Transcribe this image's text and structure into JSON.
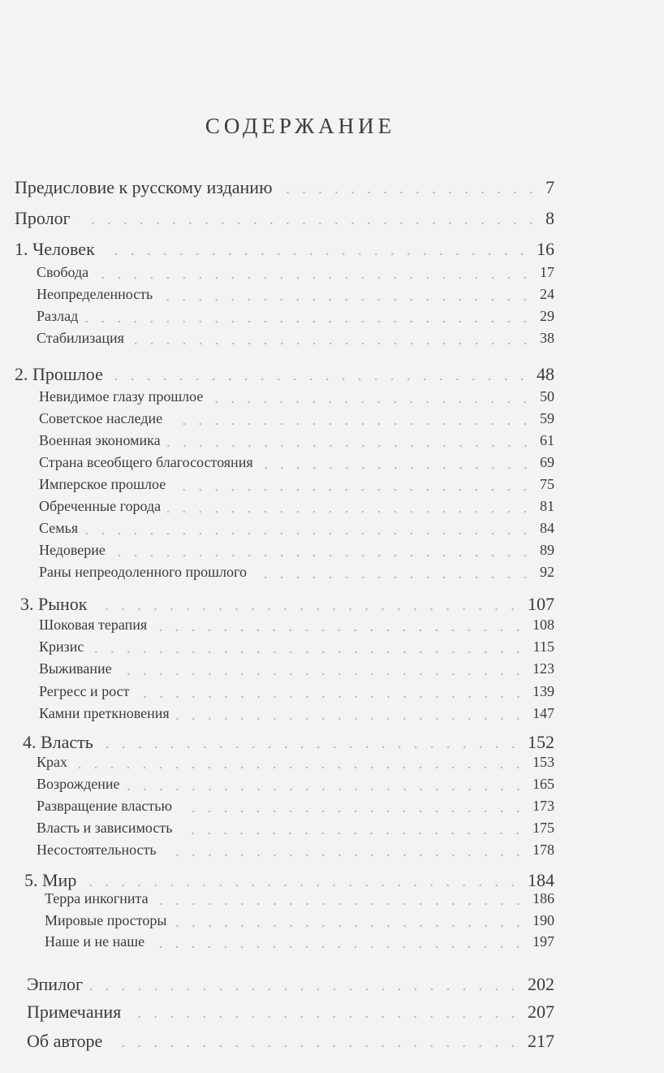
{
  "title": "СОДЕРЖАНИЕ",
  "entries": [
    {
      "label": "Предисловие к русскому изданию",
      "page": "7",
      "level": "top"
    },
    {
      "label": "Пролог",
      "page": "8",
      "level": "top"
    },
    {
      "label": "1. Человек",
      "page": "16",
      "level": "top"
    },
    {
      "label": "Свобода",
      "page": "17",
      "level": "sub"
    },
    {
      "label": "Неопределенность",
      "page": "24",
      "level": "sub"
    },
    {
      "label": "Разлад",
      "page": "29",
      "level": "sub"
    },
    {
      "label": "Стабилизация",
      "page": "38",
      "level": "sub"
    },
    {
      "label": "2. Прошлое",
      "page": "48",
      "level": "top"
    },
    {
      "label": "Невидимое глазу прошлое",
      "page": "50",
      "level": "sub"
    },
    {
      "label": "Советское наследие",
      "page": "59",
      "level": "sub"
    },
    {
      "label": "Военная экономика",
      "page": "61",
      "level": "sub"
    },
    {
      "label": "Страна всеобщего благосостояния",
      "page": "69",
      "level": "sub"
    },
    {
      "label": "Имперское прошлое",
      "page": "75",
      "level": "sub"
    },
    {
      "label": "Обреченные города",
      "page": "81",
      "level": "sub"
    },
    {
      "label": "Семья",
      "page": "84",
      "level": "sub"
    },
    {
      "label": "Недоверие",
      "page": "89",
      "level": "sub"
    },
    {
      "label": "Раны непреодоленного прошлого",
      "page": "92",
      "level": "sub"
    },
    {
      "label": "3. Рынок",
      "page": "107",
      "level": "top"
    },
    {
      "label": "Шоковая терапия",
      "page": "108",
      "level": "sub"
    },
    {
      "label": "Кризис",
      "page": "115",
      "level": "sub"
    },
    {
      "label": "Выживание",
      "page": "123",
      "level": "sub"
    },
    {
      "label": "Регресс и рост",
      "page": "139",
      "level": "sub"
    },
    {
      "label": "Камни преткновения",
      "page": "147",
      "level": "sub"
    },
    {
      "label": "4. Власть",
      "page": "152",
      "level": "top"
    },
    {
      "label": "Крах",
      "page": "153",
      "level": "sub"
    },
    {
      "label": "Возрождение",
      "page": "165",
      "level": "sub"
    },
    {
      "label": "Развращение властью",
      "page": "173",
      "level": "sub"
    },
    {
      "label": "Власть и зависимость",
      "page": "175",
      "level": "sub"
    },
    {
      "label": "Несостоятельность",
      "page": "178",
      "level": "sub"
    },
    {
      "label": "5. Мир",
      "page": "184",
      "level": "top"
    },
    {
      "label": "Терра инкогнита",
      "page": "186",
      "level": "sub"
    },
    {
      "label": "Мировые просторы",
      "page": "190",
      "level": "sub"
    },
    {
      "label": "Наше и не наше",
      "page": "197",
      "level": "sub"
    },
    {
      "label": "Эпилог",
      "page": "202",
      "level": "top"
    },
    {
      "label": "Примечания",
      "page": "207",
      "level": "top"
    },
    {
      "label": "Об авторе",
      "page": "217",
      "level": "top"
    }
  ]
}
